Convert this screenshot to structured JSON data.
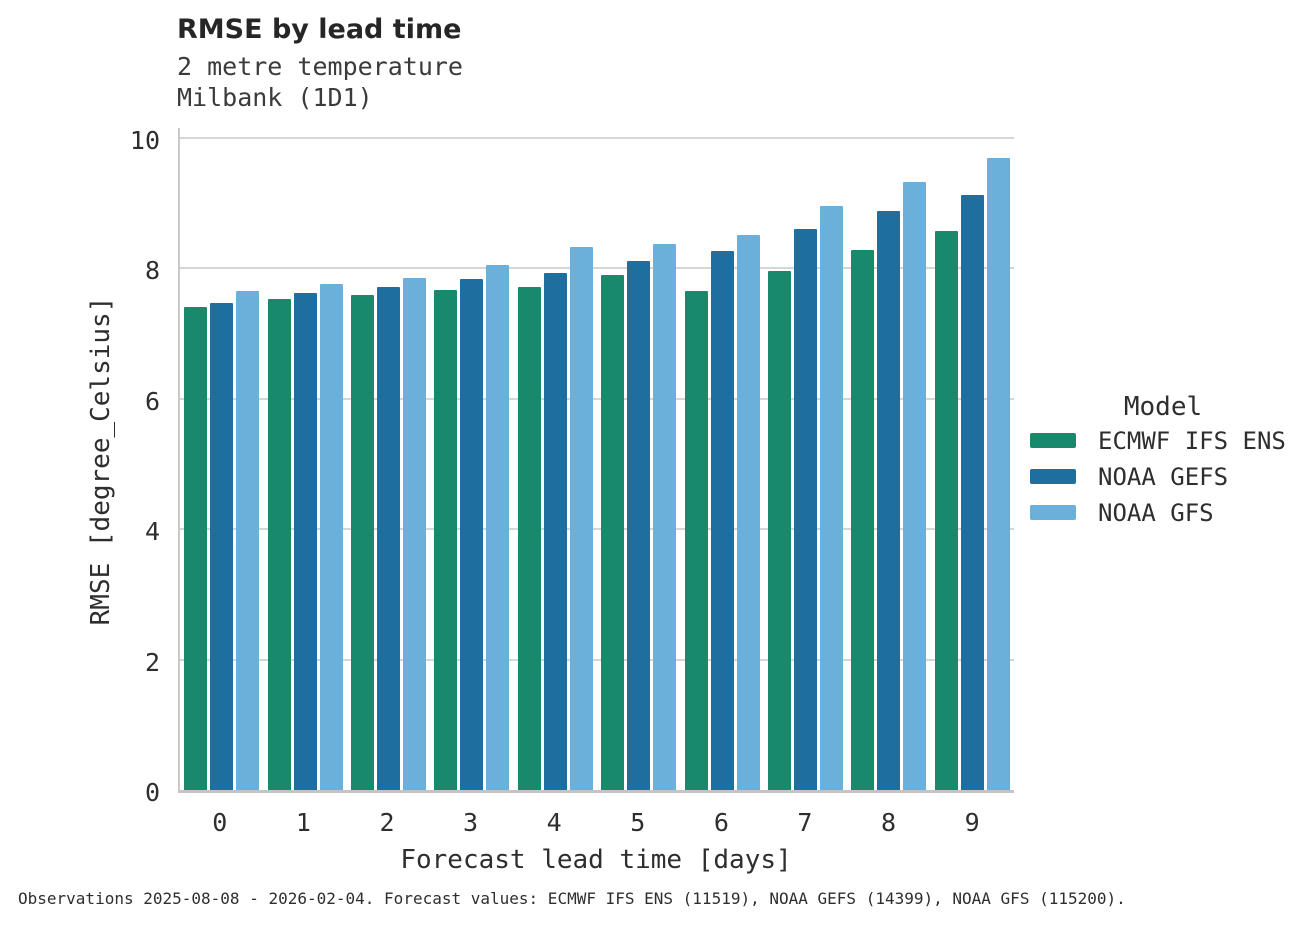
{
  "header": {
    "title": "RMSE by lead time",
    "subtitle_line1": "2 metre temperature",
    "subtitle_line2": "Milbank (1D1)"
  },
  "chart_data": {
    "type": "bar",
    "title": "RMSE by lead time",
    "subtitle": [
      "2 metre temperature",
      "Milbank (1D1)"
    ],
    "categories": [
      "0",
      "1",
      "2",
      "3",
      "4",
      "5",
      "6",
      "7",
      "8",
      "9"
    ],
    "series": [
      {
        "name": "ECMWF IFS ENS",
        "color": "#18896a",
        "values": [
          7.41,
          7.53,
          7.6,
          7.67,
          7.72,
          7.9,
          7.66,
          7.96,
          8.28,
          8.57
        ]
      },
      {
        "name": "NOAA GEFS",
        "color": "#1e6e9f",
        "values": [
          7.47,
          7.62,
          7.71,
          7.84,
          7.93,
          8.12,
          8.26,
          8.6,
          8.88,
          9.13
        ]
      },
      {
        "name": "NOAA GFS",
        "color": "#6bb0da",
        "values": [
          7.65,
          7.76,
          7.86,
          8.06,
          8.33,
          8.37,
          8.52,
          8.96,
          9.33,
          9.69
        ]
      }
    ],
    "xlabel": "Forecast lead time [days]",
    "ylabel": "RMSE [degree_Celsius]",
    "ylim": [
      0,
      10.2
    ],
    "yticks": [
      0,
      2,
      4,
      6,
      8,
      10
    ],
    "grid": "horizontal",
    "legend_title": "Model",
    "legend_position": "right"
  },
  "footer": {
    "note": "Observations 2025-08-08 - 2026-02-04. Forecast values: ECMWF IFS ENS (11519), NOAA GEFS (14399), NOAA GFS (115200)."
  },
  "colors": {
    "gridline": "#d6d6d6",
    "spine": "#c9c9c9",
    "text": "#262626"
  }
}
